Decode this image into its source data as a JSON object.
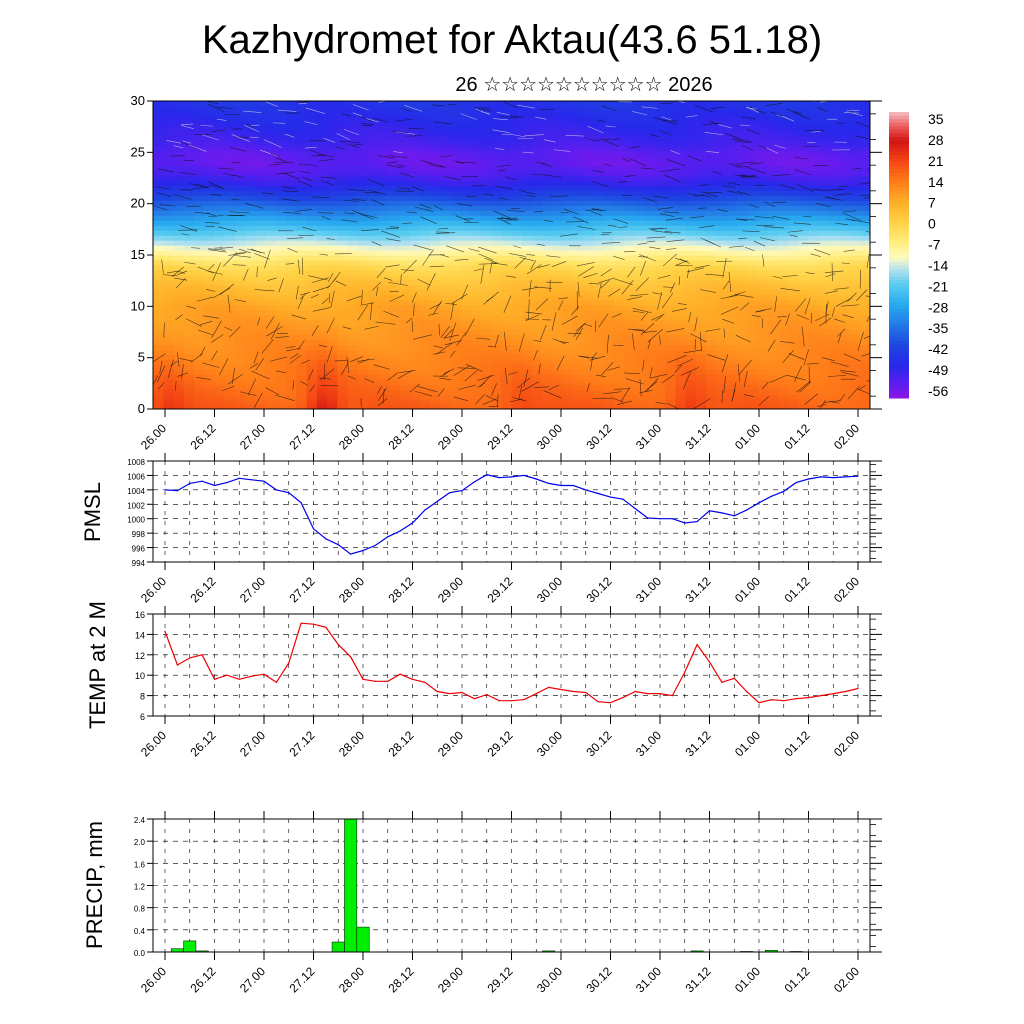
{
  "title": "Kazhydromet for Aktau(43.6 51.18)",
  "subtitle": "26 ☆☆☆☆☆☆☆☆☆☆ 2026",
  "time_labels": [
    "26.00",
    "26.12",
    "27.00",
    "27.12",
    "28.00",
    "28.12",
    "29.00",
    "29.12",
    "30.00",
    "30.12",
    "31.00",
    "31.12",
    "01.00",
    "01.12",
    "02.00"
  ],
  "chart_data": [
    {
      "type": "heatmap",
      "title": "",
      "x": [
        "26.00",
        "26.12",
        "27.00",
        "27.12",
        "28.00",
        "28.12",
        "29.00",
        "29.12",
        "30.00",
        "30.12",
        "31.00",
        "31.12",
        "01.00",
        "01.12",
        "02.00"
      ],
      "y_ticks": [
        0,
        5,
        10,
        15,
        20,
        25,
        30
      ],
      "ylim": [
        0,
        30
      ],
      "colorbar_labels": [
        "35",
        "28",
        "21",
        "14",
        "7",
        "0",
        "-7",
        "-14",
        "-21",
        "-28",
        "-35",
        "-42",
        "-49",
        "-56"
      ],
      "colorbar_range": [
        -60,
        38
      ],
      "overlay": "wind streamlines",
      "profile_levels": [
        0,
        2,
        4,
        6,
        8,
        10,
        12,
        14,
        15,
        16,
        18,
        20,
        21,
        22,
        23,
        24,
        25,
        26,
        28,
        30
      ],
      "profile_values": [
        18,
        16,
        14,
        12,
        10,
        8,
        4,
        -2,
        -8,
        -14,
        -26,
        -38,
        -44,
        -50,
        -54,
        -56,
        -55,
        -52,
        -49,
        -46
      ],
      "surface_warming": [
        {
          "x": 3.2,
          "amount": 10
        },
        {
          "x": 0.1,
          "amount": 5
        },
        {
          "x": 7.2,
          "amount": 3
        },
        {
          "x": 10.6,
          "amount": 6
        }
      ]
    },
    {
      "type": "line",
      "ylabel": "PMSL",
      "ylim": [
        994,
        1008
      ],
      "y_ticks": [
        994,
        996,
        998,
        1000,
        1002,
        1004,
        1006,
        1008
      ],
      "color": "#0000ee",
      "x": [
        0,
        0.25,
        0.5,
        0.75,
        1,
        1.25,
        1.5,
        1.75,
        2,
        2.25,
        2.5,
        2.75,
        3,
        3.25,
        3.5,
        3.75,
        4,
        4.25,
        4.5,
        4.75,
        5,
        5.25,
        5.5,
        5.75,
        6,
        6.25,
        6.5,
        6.75,
        7,
        7.25,
        7.5,
        7.75,
        8,
        8.25,
        8.5,
        8.75,
        9,
        9.25,
        9.5,
        9.75,
        10,
        10.25,
        10.5,
        10.75,
        11,
        11.25,
        11.5,
        11.75,
        12,
        12.25,
        12.5,
        12.75,
        13,
        13.25,
        13.5,
        13.75,
        14
      ],
      "values": [
        1004,
        1003.9,
        1004.9,
        1005.2,
        1004.6,
        1005,
        1005.6,
        1005.4,
        1005.2,
        1004,
        1003.6,
        1002.2,
        998.6,
        997.2,
        996.4,
        995.1,
        995.6,
        996.3,
        997.5,
        998.3,
        999.4,
        1001.2,
        1002.4,
        1003.6,
        1003.9,
        1005.1,
        1006.1,
        1005.7,
        1005.8,
        1006,
        1005.5,
        1004.9,
        1004.6,
        1004.6,
        1004,
        1003.5,
        1003,
        1002.7,
        1001.4,
        1000.1,
        1000,
        1000,
        999.4,
        999.6,
        1001.1,
        1000.8,
        1000.4,
        1001.2,
        1002.2,
        1003.1,
        1003.8,
        1005,
        1005.5,
        1005.8,
        1005.7,
        1005.8,
        1005.9
      ]
    },
    {
      "type": "line",
      "ylabel": "TEMP at 2 M",
      "ylim": [
        6,
        16
      ],
      "y_ticks": [
        6,
        8,
        10,
        12,
        14,
        16
      ],
      "color": "#ee0000",
      "x": [
        0,
        0.25,
        0.5,
        0.75,
        1,
        1.25,
        1.5,
        1.75,
        2,
        2.25,
        2.5,
        2.75,
        3,
        3.25,
        3.5,
        3.75,
        4,
        4.25,
        4.5,
        4.75,
        5,
        5.25,
        5.5,
        5.75,
        6,
        6.25,
        6.5,
        6.75,
        7,
        7.25,
        7.5,
        7.75,
        8,
        8.25,
        8.5,
        8.75,
        9,
        9.25,
        9.5,
        9.75,
        10,
        10.25,
        10.5,
        10.75,
        11,
        11.25,
        11.5,
        11.75,
        12,
        12.25,
        12.5,
        12.75,
        13,
        13.25,
        13.5,
        13.75,
        14
      ],
      "values": [
        14.3,
        11,
        11.7,
        12,
        9.6,
        10,
        9.6,
        9.9,
        10.1,
        9.3,
        11.2,
        15.1,
        15,
        14.7,
        13,
        11.8,
        9.6,
        9.4,
        9.4,
        10.1,
        9.6,
        9.3,
        8.4,
        8.2,
        8.3,
        7.7,
        8.1,
        7.5,
        7.5,
        7.6,
        8.2,
        8.8,
        8.6,
        8.4,
        8.3,
        7.4,
        7.3,
        7.8,
        8.4,
        8.2,
        8.2,
        8,
        10.3,
        13,
        11.3,
        9.3,
        9.7,
        8.4,
        7.3,
        7.6,
        7.5,
        7.7,
        7.8,
        8,
        8.2,
        8.4,
        8.7
      ]
    },
    {
      "type": "bar",
      "ylabel": "PRECIP, mm",
      "ylim": [
        0,
        2.4
      ],
      "y_ticks": [
        "0.0",
        "0.4",
        "0.8",
        "1.2",
        "1.6",
        "2.0",
        "2.4"
      ],
      "color": "#00ee00",
      "bar_width": 0.25,
      "x": [
        0.25,
        0.5,
        0.75,
        3.5,
        3.75,
        4,
        7.75,
        10.75,
        11.75,
        12.25,
        12.75
      ],
      "values": [
        0.06,
        0.2,
        0.02,
        0.18,
        2.4,
        0.45,
        0.02,
        0.02,
        0.01,
        0.03,
        0.01
      ]
    }
  ]
}
